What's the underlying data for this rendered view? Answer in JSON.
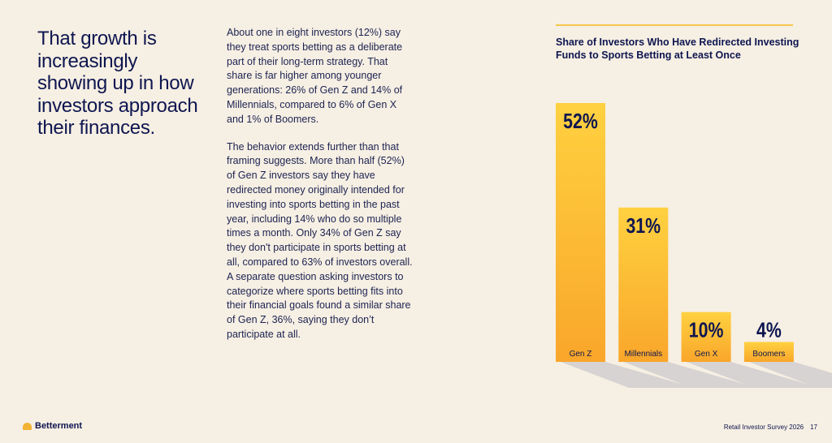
{
  "headline": "That growth is increasingly showing up in how investors approach their finances.",
  "paragraphs": [
    "About one in eight investors (12%) say they treat sports betting as a deliberate part of their long-term strategy. That share is far higher among younger generations: 26% of Gen Z and 14% of Millennials, compared to 6% of Gen X and 1% of Boomers.",
    "The behavior extends further than that framing suggests. More than half (52%) of Gen Z investors say they have redirected money originally intended for investing into sports betting in the past year, including 14% who do so multiple times a month. Only 34% of Gen Z say they don't participate in sports betting at all, compared to 63% of investors overall. A separate question asking investors to categorize where sports betting fits into their financial goals found a similar share of Gen Z, 36%, saying they don’t participate at all."
  ],
  "chart_data": {
    "type": "bar",
    "title": "Share of Investors Who Have Redirected Investing Funds to Sports Betting at Least Once",
    "categories": [
      "Gen Z",
      "Millennials",
      "Gen X",
      "Boomers"
    ],
    "values": [
      52,
      31,
      10,
      4
    ],
    "value_labels": [
      "52%",
      "31%",
      "10%",
      "4%"
    ],
    "unit": "%",
    "ylim": [
      0,
      52
    ],
    "grid": false,
    "legend": "none"
  },
  "colors": {
    "bar_top": "#ffd140",
    "bar_bottom": "#f9a62a",
    "shadow": "#d7d3d2",
    "text": "#0e1650",
    "accent_rule": "#f4c84a"
  },
  "footer": {
    "brand": "Betterment",
    "report": "Retail Investor Survey 2026",
    "page": "17"
  }
}
